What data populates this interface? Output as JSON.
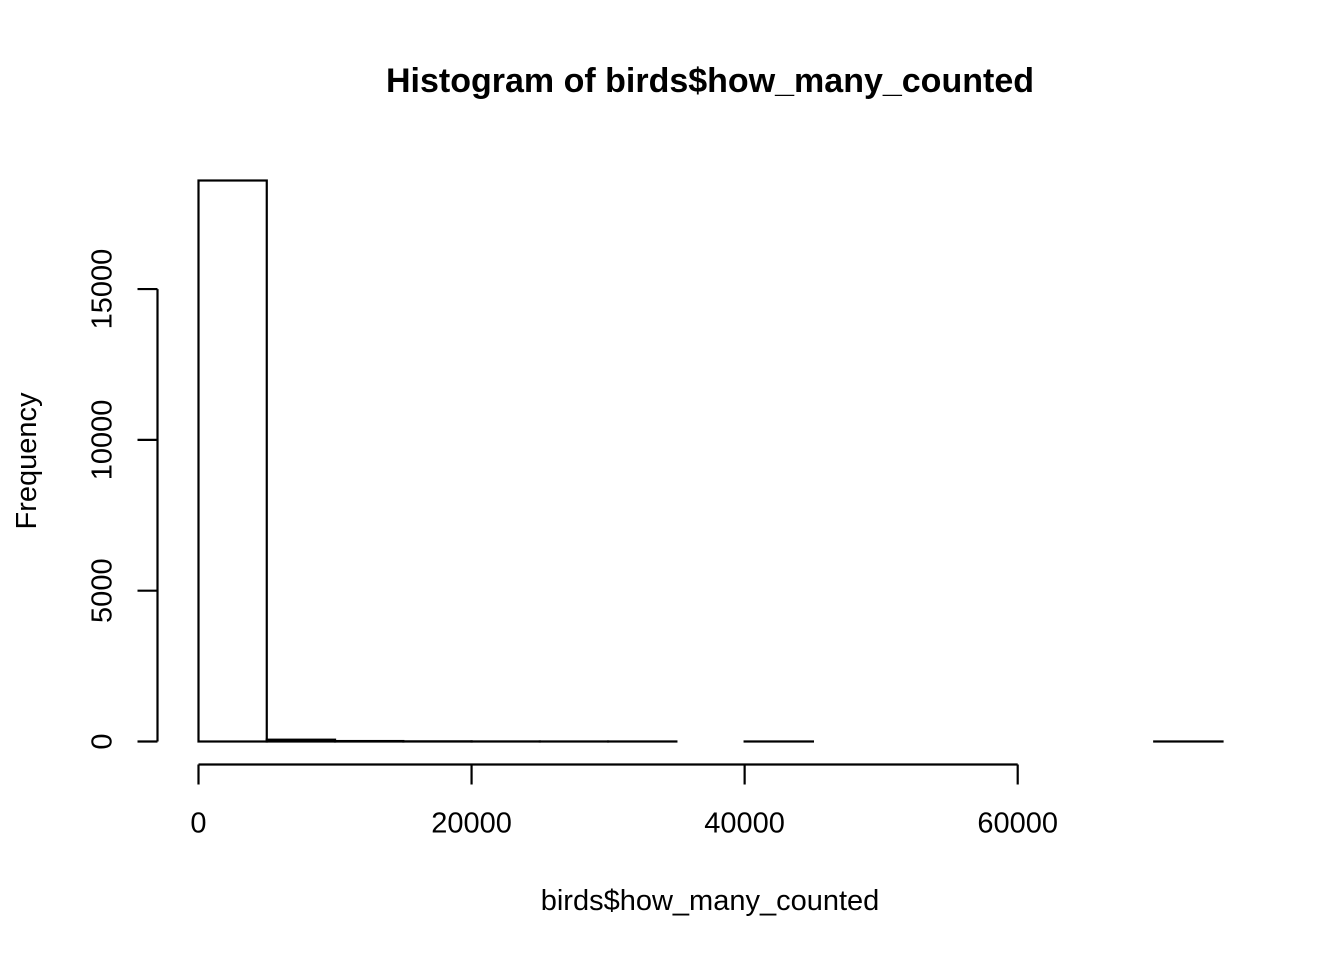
{
  "chart_data": {
    "type": "bar",
    "title": "Histogram of birds$how_many_counted",
    "xlabel": "birds$how_many_counted",
    "ylabel": "Frequency",
    "bin_edges": [
      0,
      5000,
      10000,
      15000,
      20000,
      25000,
      30000,
      35000,
      40000,
      45000,
      50000,
      55000,
      60000,
      65000,
      70000,
      75000
    ],
    "values": [
      18600,
      60,
      15,
      5,
      2,
      1,
      1,
      0,
      1,
      0,
      0,
      0,
      0,
      0,
      1
    ],
    "xlim": [
      0,
      75000
    ],
    "ylim": [
      0,
      18600
    ],
    "x_ticks": [
      0,
      20000,
      40000,
      60000
    ],
    "y_ticks": [
      0,
      5000,
      10000,
      15000
    ],
    "x_tick_labels": [
      "0",
      "20000",
      "40000",
      "60000"
    ],
    "y_tick_labels": [
      "0",
      "5000",
      "10000",
      "15000"
    ],
    "bar_fill": "#ffffff",
    "bar_stroke": "#000000",
    "grid": false,
    "legend": "none"
  }
}
